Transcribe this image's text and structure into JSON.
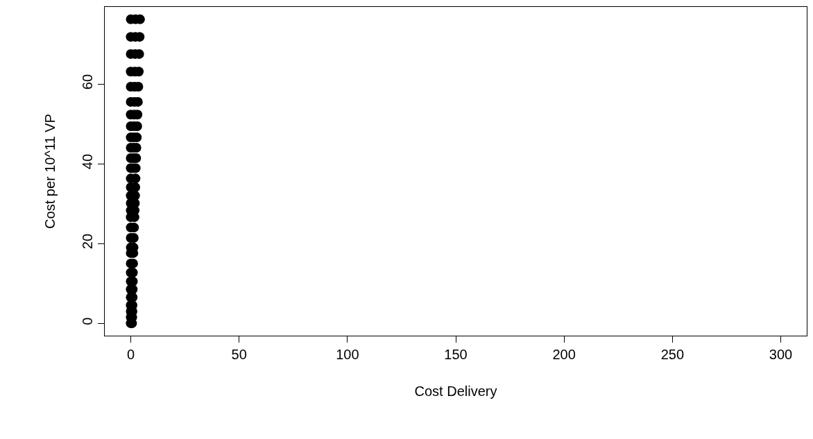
{
  "chart_data": {
    "type": "scatter",
    "xlabel": "Cost Delivery",
    "ylabel": "Cost per 10^11 VP",
    "marker": "circle",
    "xlim": [
      -12,
      312
    ],
    "xticks": [
      0,
      50,
      100,
      150,
      200,
      250,
      300
    ],
    "ylim": [
      -3.1,
      79.3
    ],
    "yticks": [
      0,
      20,
      40,
      60
    ],
    "series": [
      {
        "color": "#000000",
        "x": [
          0,
          2.2,
          4.3,
          0,
          2.1,
          4.1,
          0,
          2,
          3.9,
          0,
          1.9,
          3.7,
          0,
          1.8,
          3.5,
          0,
          1.7,
          3.3,
          0,
          1.6,
          3.1,
          0,
          1.5,
          3.0,
          0,
          1.4,
          2.8,
          0,
          1.3,
          2.6,
          0,
          1.3,
          2.5,
          0,
          1.2,
          2.3,
          0,
          2.2,
          0,
          2.1,
          0,
          2.0,
          0,
          1.9,
          0,
          1.8,
          0,
          1.7,
          0,
          1.5,
          0,
          1.4,
          0,
          1.3,
          0,
          1.2,
          0,
          1.1,
          0,
          1.0,
          0,
          1.0,
          0,
          0.9,
          0,
          0.9,
          0,
          0.8,
          0,
          0.8,
          0,
          0.7,
          0,
          0.6
        ],
        "values": [
          76.2,
          76.2,
          76.2,
          71.8,
          71.8,
          71.8,
          67.5,
          67.5,
          67.5,
          63.1,
          63.1,
          63.1,
          59.3,
          59.3,
          59.3,
          55.5,
          55.5,
          55.5,
          52.3,
          52.3,
          52.3,
          49.4,
          49.4,
          49.4,
          46.6,
          46.6,
          46.6,
          44.0,
          44.0,
          44.0,
          41.4,
          41.4,
          41.4,
          38.9,
          38.9,
          38.9,
          36.3,
          36.3,
          34.1,
          34.1,
          32.0,
          32.0,
          30.1,
          30.1,
          28.3,
          28.3,
          26.6,
          26.6,
          24.0,
          24.0,
          21.4,
          21.4,
          19.0,
          19.0,
          17.6,
          17.6,
          15.0,
          15.0,
          12.7,
          12.7,
          10.5,
          10.5,
          8.5,
          8.5,
          6.5,
          6.5,
          4.5,
          4.5,
          3.0,
          3.0,
          1.5,
          1.5,
          0,
          0
        ]
      }
    ]
  }
}
